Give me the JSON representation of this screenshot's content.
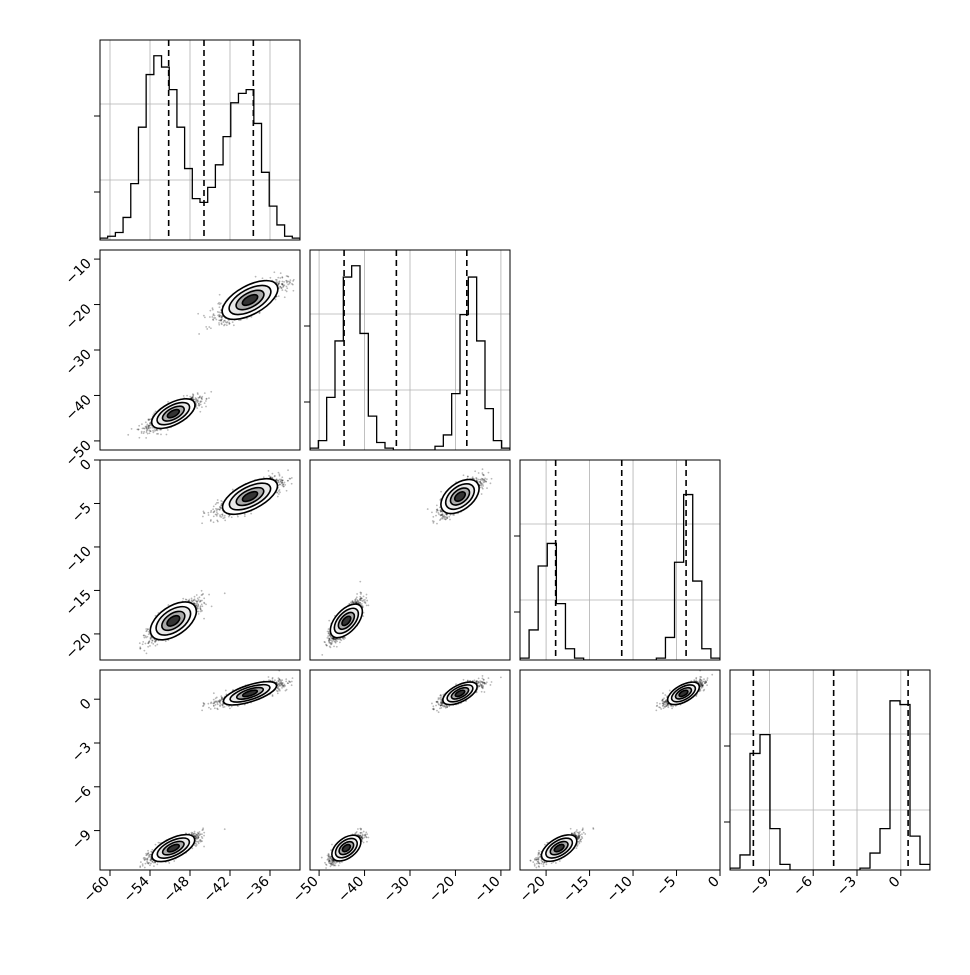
{
  "chart_data": {
    "type": "corner",
    "title": "",
    "parameters": [
      "",
      "",
      "",
      ""
    ],
    "ranges": [
      [
        -61.5,
        -31.5
      ],
      [
        -52,
        -8
      ],
      [
        -23,
        0
      ],
      [
        -11.7,
        2
      ]
    ],
    "ticks": [
      {
        "values": [
          -60,
          -54,
          -48,
          -42,
          -36
        ],
        "labels": [
          "−60",
          "−54",
          "−48",
          "−42",
          "−36"
        ]
      },
      {
        "values": [
          -50,
          -40,
          -30,
          -20,
          -10
        ],
        "labels": [
          "−50",
          "−40",
          "−30",
          "−20",
          "−10"
        ]
      },
      {
        "values": [
          -20,
          -15,
          -10,
          -5,
          0
        ],
        "labels": [
          "−20",
          "−15",
          "−10",
          "−5",
          "0"
        ]
      },
      {
        "values": [
          -9,
          -6,
          -3,
          0
        ],
        "labels": [
          "−9",
          "−6",
          "−3",
          "0"
        ]
      }
    ],
    "modes": [
      {
        "means": [
          -50.5,
          -44,
          -18.5,
          -10.2
        ],
        "sds": [
          1.8,
          1.6,
          1.1,
          0.45
        ]
      },
      {
        "means": [
          -39,
          -19,
          -4.2,
          0.4
        ],
        "sds": [
          2.3,
          2.1,
          1.0,
          0.38
        ]
      }
    ],
    "correlation": 0.8,
    "quantiles": [
      [
        -51.2,
        -45.9,
        -38.5
      ],
      [
        -44.5,
        -33.0,
        -17.5
      ],
      [
        -18.9,
        -11.3,
        -3.9
      ],
      [
        -10.1,
        -4.6,
        0.5
      ]
    ],
    "histograms": [
      [
        0.01,
        0.02,
        0.04,
        0.12,
        0.3,
        0.6,
        0.88,
        0.98,
        0.92,
        0.8,
        0.6,
        0.38,
        0.22,
        0.2,
        0.28,
        0.4,
        0.55,
        0.73,
        0.78,
        0.8,
        0.62,
        0.36,
        0.18,
        0.08,
        0.02,
        0.01
      ],
      [
        0.01,
        0.05,
        0.28,
        0.58,
        0.92,
        0.98,
        0.62,
        0.18,
        0.04,
        0.01,
        0,
        0,
        0,
        0,
        0,
        0.02,
        0.08,
        0.3,
        0.72,
        0.92,
        0.58,
        0.22,
        0.05,
        0.01
      ],
      [
        0.01,
        0.16,
        0.5,
        0.62,
        0.3,
        0.06,
        0.01,
        0,
        0,
        0,
        0,
        0,
        0,
        0,
        0,
        0.01,
        0.12,
        0.52,
        0.88,
        0.42,
        0.06,
        0.01
      ],
      [
        0.01,
        0.08,
        0.62,
        0.72,
        0.22,
        0.03,
        0,
        0,
        0,
        0,
        0,
        0,
        0,
        0.01,
        0.09,
        0.22,
        0.9,
        0.88,
        0.18,
        0.03
      ]
    ],
    "grid": true,
    "legend": "none"
  }
}
